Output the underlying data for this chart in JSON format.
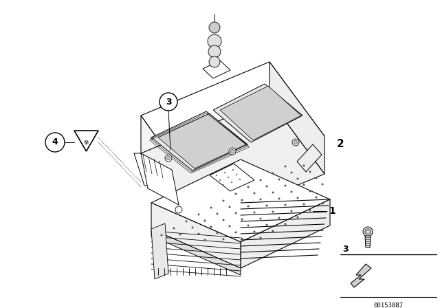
{
  "bg_color": "#ffffff",
  "lc": "#000000",
  "catalog_number": "00153887",
  "figsize": [
    6.4,
    4.48
  ],
  "dpi": 100,
  "upper_module_label": "2",
  "lower_module_label": "1",
  "screw_label": "3",
  "warning_label": "4",
  "label3_callout": "3",
  "upper_color": "#ffffff",
  "lower_color": "#ffffff",
  "slot_color": "#e0e0e0",
  "dot_color": "#555555"
}
